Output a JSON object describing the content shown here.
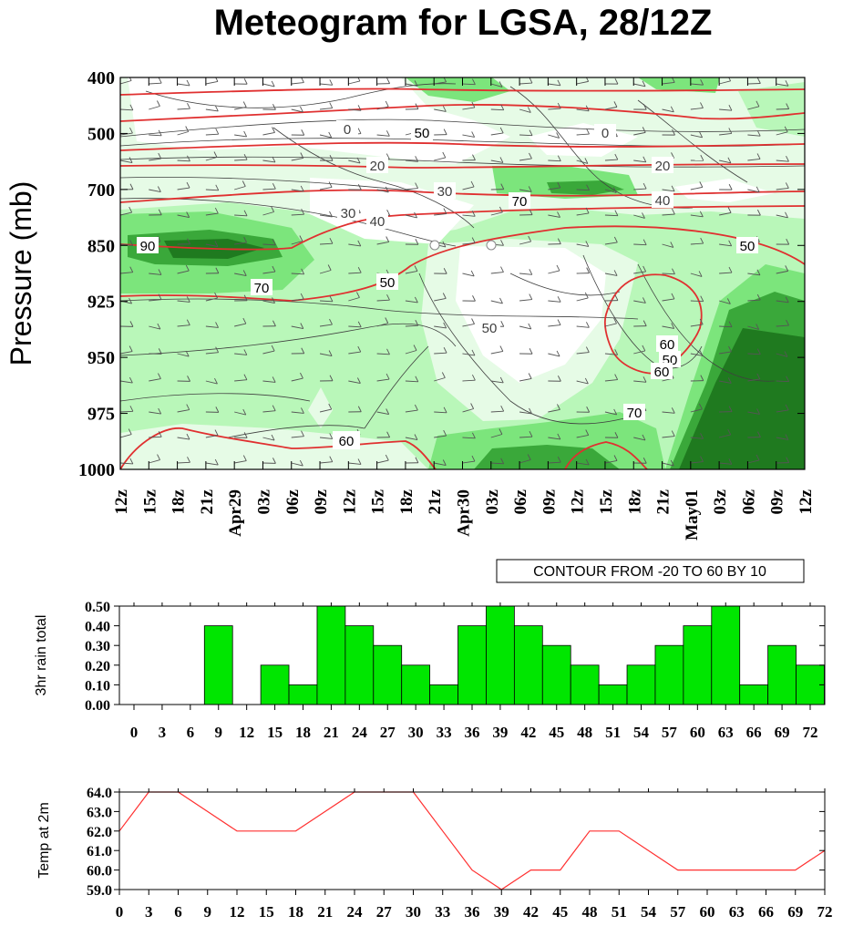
{
  "title": "Meteogram for LGSA, 28/12Z",
  "colors": {
    "green_light": "#e6fbe6",
    "green_mid": "#b9f7b9",
    "green_medium": "#7ce57c",
    "green_dark": "#3aa83a",
    "green_darkest": "#1f7a1f",
    "rain_bar": "#00e600",
    "temp_line": "#ff3030",
    "rh_line": "#e03030",
    "contour_line": "#404040"
  },
  "chart_data": [
    {
      "type": "heatmap",
      "ylabel": "Pressure (mb)",
      "pressure_levels": [
        "400",
        "500",
        "700",
        "850",
        "925",
        "950",
        "975",
        "1000"
      ],
      "time_labels": [
        "12z",
        "15z",
        "18z",
        "21z",
        "Apr29",
        "03z",
        "06z",
        "09z",
        "12z",
        "15z",
        "18z",
        "21z",
        "Apr30",
        "03z",
        "06z",
        "09z",
        "12z",
        "15z",
        "18z",
        "21z",
        "May01",
        "03z",
        "06z",
        "09z",
        "12z"
      ],
      "contour_note": "CONTOUR FROM -20 TO 60 BY 10",
      "black_contour_labels": [
        "0",
        "20",
        "30",
        "30",
        "40",
        "0",
        "20",
        "40",
        "50"
      ],
      "red_contour_labels": [
        "50",
        "70",
        "90",
        "70",
        "50",
        "50",
        "60",
        "50",
        "60",
        "70"
      ]
    },
    {
      "type": "bar",
      "ylabel": "3hr rain total",
      "ylim": [
        0,
        0.5
      ],
      "yticks": [
        "0.00",
        "0.10",
        "0.20",
        "0.30",
        "0.40",
        "0.50"
      ],
      "x": [
        0,
        3,
        6,
        9,
        12,
        15,
        18,
        21,
        24,
        27,
        30,
        33,
        36,
        39,
        42,
        45,
        48,
        51,
        54,
        57,
        60,
        63,
        66,
        69,
        72
      ],
      "values": [
        0,
        0,
        0,
        0.4,
        0,
        0.2,
        0.1,
        0.5,
        0.4,
        0.3,
        0.2,
        0.1,
        0.4,
        0.5,
        0.4,
        0.3,
        0.2,
        0.1,
        0.2,
        0.3,
        0.4,
        0.5,
        0.1,
        0.3,
        0.2
      ]
    },
    {
      "type": "line",
      "ylabel": "Temp at 2m",
      "ylim": [
        59.0,
        64.0
      ],
      "yticks": [
        "59.0",
        "60.0",
        "61.0",
        "62.0",
        "63.0",
        "64.0"
      ],
      "x": [
        0,
        3,
        6,
        9,
        12,
        15,
        18,
        21,
        24,
        27,
        30,
        33,
        36,
        39,
        42,
        45,
        48,
        51,
        54,
        57,
        60,
        63,
        66,
        69,
        72
      ],
      "values": [
        62,
        64,
        64,
        63,
        62,
        62,
        62,
        63,
        64,
        64,
        64,
        62,
        60,
        59,
        60,
        60,
        62,
        62,
        61,
        60,
        60,
        60,
        60,
        60,
        61
      ]
    }
  ]
}
